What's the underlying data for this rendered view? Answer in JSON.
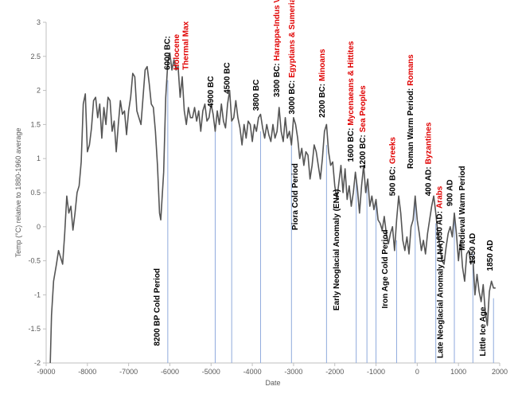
{
  "chart_data": {
    "type": "line",
    "xlabel": "Date",
    "ylabel": "Temp (°C) relative to 1880-1960 average",
    "xlim": [
      -9000,
      2000
    ],
    "xticks": [
      -9000,
      -8000,
      -7000,
      -6000,
      -5000,
      -4000,
      -3000,
      -2000,
      -1000,
      0,
      1000,
      2000
    ],
    "ylim": [
      -2,
      3
    ],
    "yticks": [
      -2,
      -1.5,
      -1,
      -0.5,
      0,
      0.5,
      1,
      1.5,
      2,
      2.5,
      3
    ],
    "guide_color": "#8faadc",
    "x": [
      -8900,
      -8870,
      -8820,
      -8750,
      -8700,
      -8650,
      -8600,
      -8550,
      -8500,
      -8450,
      -8400,
      -8350,
      -8300,
      -8250,
      -8200,
      -8150,
      -8100,
      -8050,
      -8000,
      -7950,
      -7900,
      -7850,
      -7800,
      -7750,
      -7700,
      -7650,
      -7600,
      -7550,
      -7500,
      -7450,
      -7400,
      -7350,
      -7300,
      -7250,
      -7200,
      -7150,
      -7100,
      -7050,
      -7000,
      -6950,
      -6900,
      -6850,
      -6800,
      -6750,
      -6700,
      -6650,
      -6600,
      -6550,
      -6500,
      -6450,
      -6400,
      -6350,
      -6300,
      -6250,
      -6220,
      -6150,
      -6100,
      -6050,
      -6000,
      -5950,
      -5900,
      -5850,
      -5800,
      -5750,
      -5700,
      -5650,
      -5600,
      -5550,
      -5500,
      -5450,
      -5400,
      -5350,
      -5300,
      -5250,
      -5200,
      -5150,
      -5100,
      -5050,
      -5000,
      -4950,
      -4900,
      -4850,
      -4800,
      -4750,
      -4700,
      -4650,
      -4600,
      -4550,
      -4500,
      -4450,
      -4400,
      -4350,
      -4300,
      -4250,
      -4200,
      -4150,
      -4100,
      -4050,
      -4000,
      -3950,
      -3900,
      -3850,
      -3800,
      -3750,
      -3700,
      -3650,
      -3600,
      -3550,
      -3500,
      -3450,
      -3400,
      -3350,
      -3300,
      -3250,
      -3200,
      -3150,
      -3100,
      -3050,
      -3000,
      -2950,
      -2900,
      -2850,
      -2800,
      -2750,
      -2700,
      -2650,
      -2600,
      -2550,
      -2500,
      -2450,
      -2400,
      -2350,
      -2300,
      -2250,
      -2200,
      -2150,
      -2100,
      -2050,
      -2000,
      -1950,
      -1900,
      -1850,
      -1800,
      -1750,
      -1700,
      -1650,
      -1600,
      -1550,
      -1500,
      -1450,
      -1400,
      -1350,
      -1300,
      -1250,
      -1200,
      -1150,
      -1100,
      -1050,
      -1000,
      -950,
      -900,
      -850,
      -800,
      -750,
      -700,
      -650,
      -600,
      -550,
      -500,
      -450,
      -400,
      -350,
      -300,
      -250,
      -200,
      -150,
      -100,
      -50,
      0,
      50,
      100,
      150,
      200,
      250,
      300,
      350,
      400,
      450,
      500,
      550,
      600,
      650,
      700,
      750,
      800,
      850,
      900,
      950,
      1000,
      1050,
      1100,
      1150,
      1200,
      1250,
      1300,
      1350,
      1400,
      1450,
      1500,
      1550,
      1600,
      1650,
      1700,
      1750,
      1800,
      1850,
      1900
    ],
    "series": [
      {
        "color": "#555555",
        "values": [
          -2,
          -1.3,
          -0.8,
          -0.55,
          -0.35,
          -0.45,
          -0.55,
          -0.1,
          0.45,
          0.2,
          0.3,
          -0.05,
          0.2,
          0.5,
          0.6,
          0.95,
          1.8,
          1.95,
          1.1,
          1.2,
          1.45,
          1.85,
          1.9,
          1.6,
          1.8,
          1.3,
          1.75,
          1.5,
          1.9,
          1.85,
          1.4,
          1.55,
          1.1,
          1.5,
          1.85,
          1.65,
          1.7,
          1.35,
          1.7,
          1.9,
          2.25,
          2.2,
          1.7,
          1.6,
          1.5,
          1.9,
          2.3,
          2.35,
          2.1,
          1.8,
          1.75,
          1.4,
          0.9,
          0.2,
          0.1,
          0.8,
          1.9,
          2.4,
          2.55,
          2.3,
          2.45,
          2.3,
          2.35,
          1.9,
          2.2,
          1.7,
          1.5,
          1.75,
          1.6,
          1.6,
          1.75,
          1.55,
          1.7,
          1.4,
          1.7,
          1.8,
          1.55,
          1.6,
          1.8,
          1.65,
          1.4,
          1.7,
          1.5,
          1.8,
          1.55,
          1.45,
          1.8,
          2.0,
          1.55,
          1.6,
          1.85,
          1.6,
          1.45,
          1.2,
          1.5,
          1.3,
          1.55,
          1.5,
          1.25,
          1.5,
          1.4,
          1.6,
          1.65,
          1.45,
          1.3,
          1.5,
          1.35,
          1.25,
          1.5,
          1.3,
          1.4,
          1.75,
          1.4,
          1.25,
          1.6,
          1.3,
          1.4,
          1.2,
          1.6,
          1.5,
          1.3,
          1.0,
          1.15,
          0.9,
          1.1,
          1.05,
          0.7,
          0.9,
          1.2,
          1.1,
          0.9,
          0.7,
          1.0,
          1.4,
          1.5,
          1.1,
          0.9,
          0.95,
          0.6,
          0.4,
          0.65,
          0.9,
          0.5,
          0.85,
          0.4,
          0.6,
          0.3,
          0.5,
          0.8,
          0.55,
          0.2,
          0.6,
          0.9,
          0.5,
          0.7,
          0.3,
          0.45,
          0.25,
          0.4,
          0.1,
          0.05,
          -0.05,
          0.15,
          -0.1,
          -0.25,
          -0.1,
          0.0,
          -0.35,
          0.1,
          0.45,
          0.2,
          -0.2,
          -0.35,
          -0.15,
          -0.4,
          0.0,
          0.1,
          0.45,
          0.1,
          -0.1,
          -0.35,
          -0.2,
          -0.4,
          -0.1,
          0.1,
          0.3,
          0.45,
          0.2,
          -0.1,
          -0.3,
          -0.5,
          -0.55,
          -0.3,
          -0.1,
          0.0,
          -0.15,
          0.2,
          -0.1,
          -0.5,
          -0.2,
          -0.6,
          -0.8,
          -0.4,
          -0.35,
          -0.55,
          -0.45,
          -1.0,
          -0.7,
          -0.95,
          -1.1,
          -0.85,
          -1.25,
          -1.45,
          -0.95,
          -0.8,
          -0.9,
          -0.9
        ]
      }
    ],
    "guides": [
      {
        "x": -6050,
        "top": 2.15
      },
      {
        "x": -4900,
        "top": 1.45
      },
      {
        "x": -4500,
        "top": 1.6
      },
      {
        "x": -3800,
        "top": 1.4
      },
      {
        "x": -3050,
        "top": 1.3
      },
      {
        "x": -2200,
        "top": 1.2
      },
      {
        "x": -1480,
        "top": 0.7
      },
      {
        "x": -1220,
        "top": 0.65
      },
      {
        "x": -1000,
        "top": 0.35
      },
      {
        "x": -500,
        "top": -0.2
      },
      {
        "x": -50,
        "top": 0.45
      },
      {
        "x": 450,
        "top": 0.05
      },
      {
        "x": 900,
        "top": 0.1
      },
      {
        "x": 1350,
        "top": -0.4
      },
      {
        "x": 1850,
        "top": -1.05
      }
    ],
    "annotations": [
      {
        "x": -6250,
        "y": -1.75,
        "lines": [
          [
            {
              "text": "8200 BP Cold Period",
              "color": "#000000"
            }
          ]
        ]
      },
      {
        "x": -6000,
        "y": 2.3,
        "lines": [
          [
            {
              "text": "6000 BC:",
              "color": "#000000"
            }
          ],
          [
            {
              "text": "Holocene",
              "color": "#e00000"
            }
          ],
          [
            {
              "text": "Thermal Max",
              "color": "#e00000"
            }
          ]
        ]
      },
      {
        "x": -4950,
        "y": 1.75,
        "lines": [
          [
            {
              "text": "4900 BC",
              "color": "#000000"
            }
          ]
        ]
      },
      {
        "x": -4550,
        "y": 1.95,
        "lines": [
          [
            {
              "text": "4500 BC",
              "color": "#000000"
            }
          ]
        ]
      },
      {
        "x": -3850,
        "y": 1.7,
        "lines": [
          [
            {
              "text": "3800 BC",
              "color": "#000000"
            }
          ]
        ]
      },
      {
        "x": -3350,
        "y": 1.9,
        "lines": [
          [
            {
              "text": "3300 BC:",
              "color": "#000000"
            },
            {
              "text": "Harappa-Indus Valley",
              "color": "#e00000"
            }
          ]
        ]
      },
      {
        "x": -2980,
        "y": 1.65,
        "lines": [
          [
            {
              "text": "3000 BC:",
              "color": "#000000"
            },
            {
              "text": "Egyptians & Sumerians",
              "color": "#e00000"
            }
          ]
        ]
      },
      {
        "x": -2900,
        "y": -0.05,
        "lines": [
          [
            {
              "text": "Piora Cold Period",
              "color": "#000000"
            }
          ]
        ]
      },
      {
        "x": -2250,
        "y": 1.6,
        "lines": [
          [
            {
              "text": "2200 BC:",
              "color": "#000000"
            },
            {
              "text": "Minoans",
              "color": "#e00000"
            }
          ]
        ]
      },
      {
        "x": -1900,
        "y": -1.23,
        "lines": [
          [
            {
              "text": "Early Neoglacial Anomaly (ENA)",
              "color": "#000000"
            }
          ]
        ]
      },
      {
        "x": -1550,
        "y": 0.95,
        "lines": [
          [
            {
              "text": "1600 BC:",
              "color": "#000000"
            },
            {
              "text": "Mycenaeans & Hittites",
              "color": "#e00000"
            }
          ]
        ]
      },
      {
        "x": -1260,
        "y": 0.85,
        "lines": [
          [
            {
              "text": "1200 BC:",
              "color": "#000000"
            },
            {
              "text": "Sea Peoples",
              "color": "#e00000"
            }
          ]
        ]
      },
      {
        "x": -720,
        "y": -1.2,
        "lines": [
          [
            {
              "text": "Iron Age Cold Period",
              "color": "#000000"
            }
          ]
        ]
      },
      {
        "x": -540,
        "y": 0.45,
        "lines": [
          [
            {
              "text": "500 BC:",
              "color": "#000000"
            },
            {
              "text": "Greeks",
              "color": "#e00000"
            }
          ]
        ]
      },
      {
        "x": -100,
        "y": 0.85,
        "lines": [
          [
            {
              "text": "Roman Warm Period:",
              "color": "#000000"
            },
            {
              "text": "Romans",
              "color": "#e00000"
            }
          ]
        ]
      },
      {
        "x": 330,
        "y": 0.45,
        "lines": [
          [
            {
              "text": "400 AD:",
              "color": "#000000"
            },
            {
              "text": "Byzantines",
              "color": "#e00000"
            }
          ]
        ]
      },
      {
        "x": 600,
        "y": -0.2,
        "lines": [
          [
            {
              "text": "650 AD:",
              "color": "#000000"
            },
            {
              "text": "Arabs",
              "color": "#e00000"
            }
          ]
        ]
      },
      {
        "x": 850,
        "y": 0.3,
        "lines": [
          [
            {
              "text": "900 AD",
              "color": "#000000"
            }
          ]
        ]
      },
      {
        "x": 620,
        "y": -1.93,
        "lines": [
          [
            {
              "text": "Late Neoglacial Anomaly (LNA)",
              "color": "#000000"
            }
          ]
        ]
      },
      {
        "x": 1150,
        "y": -0.35,
        "lines": [
          [
            {
              "text": "Medieval Warm Period",
              "color": "#000000"
            }
          ]
        ]
      },
      {
        "x": 1400,
        "y": -0.55,
        "lines": [
          [
            {
              "text": "1350 AD",
              "color": "#000000"
            }
          ]
        ]
      },
      {
        "x": 1650,
        "y": -1.9,
        "lines": [
          [
            {
              "text": "Little Ice Age",
              "color": "#000000"
            }
          ]
        ]
      },
      {
        "x": 1830,
        "y": -0.65,
        "lines": [
          [
            {
              "text": "1850 AD",
              "color": "#000000"
            }
          ]
        ]
      }
    ]
  }
}
